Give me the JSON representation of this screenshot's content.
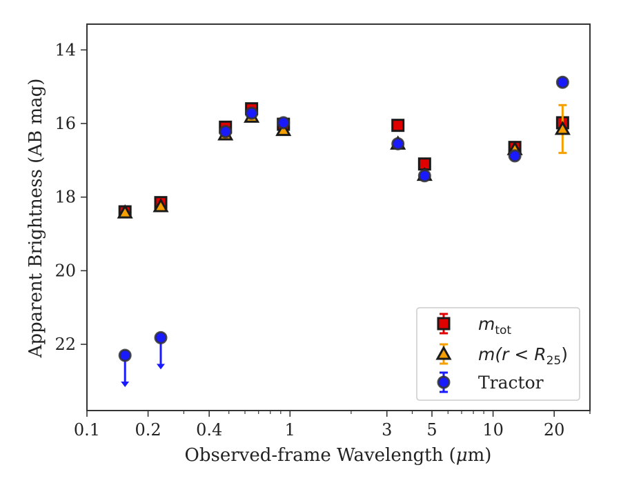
{
  "chart_data": {
    "type": "scatter",
    "xlabel_prefix": "Observed-frame Wavelength (",
    "xlabel_unit": "μ",
    "xlabel_suffix": "m)",
    "ylabel": "Apparent Brightness (AB mag)",
    "x_scale": "log",
    "xlim": [
      0.1,
      30
    ],
    "ylim": [
      23.8,
      13.3
    ],
    "y_inverted": true,
    "x_ticks": [
      0.1,
      0.2,
      0.4,
      1,
      3,
      5,
      10,
      20
    ],
    "x_tick_labels": [
      "0.1",
      "0.2",
      "0.4",
      "1",
      "3",
      "5",
      "10",
      "20"
    ],
    "y_ticks": [
      14,
      16,
      18,
      20,
      22
    ],
    "y_tick_labels": [
      "14",
      "16",
      "18",
      "20",
      "22"
    ],
    "legend_position": "lower-right",
    "series": [
      {
        "key": "mtot",
        "legend_main": "m",
        "legend_sub": "tot",
        "marker": "square",
        "fill": "#e00000",
        "errorbar_color": "#e00000",
        "points": [
          {
            "x": 0.154,
            "y": 18.4
          },
          {
            "x": 0.231,
            "y": 18.15
          },
          {
            "x": 0.481,
            "y": 16.1
          },
          {
            "x": 0.647,
            "y": 15.6
          },
          {
            "x": 0.928,
            "y": 16.02
          },
          {
            "x": 3.4,
            "y": 16.05
          },
          {
            "x": 4.6,
            "y": 17.1
          },
          {
            "x": 12.8,
            "y": 16.65
          },
          {
            "x": 22.0,
            "y": 15.98
          }
        ]
      },
      {
        "key": "mr25",
        "legend_main": "m(r < R",
        "legend_sub": "25",
        "legend_close": ")",
        "marker": "triangle",
        "fill": "#f5a000",
        "errorbar_color": "#f5a000",
        "points": [
          {
            "x": 0.154,
            "y": 18.42
          },
          {
            "x": 0.231,
            "y": 18.25
          },
          {
            "x": 0.481,
            "y": 16.3
          },
          {
            "x": 0.647,
            "y": 15.82
          },
          {
            "x": 0.928,
            "y": 16.18
          },
          {
            "x": 3.4,
            "y": 16.55
          },
          {
            "x": 4.6,
            "y": 17.4
          },
          {
            "x": 12.8,
            "y": 16.7
          },
          {
            "x": 22.0,
            "y": 16.15,
            "yerr": 0.65
          }
        ]
      },
      {
        "key": "tractor",
        "legend_main": "Tractor",
        "marker": "circle",
        "fill": "#1a1aff",
        "errorbar_color": "#1a1aff",
        "points": [
          {
            "x": 0.154,
            "y": 22.3,
            "upper_limit": true
          },
          {
            "x": 0.231,
            "y": 21.82,
            "upper_limit": true
          },
          {
            "x": 0.481,
            "y": 16.22
          },
          {
            "x": 0.647,
            "y": 15.72
          },
          {
            "x": 0.928,
            "y": 15.98
          },
          {
            "x": 3.4,
            "y": 16.55
          },
          {
            "x": 4.6,
            "y": 17.42
          },
          {
            "x": 12.8,
            "y": 16.88
          },
          {
            "x": 22.0,
            "y": 14.88
          }
        ]
      }
    ]
  }
}
